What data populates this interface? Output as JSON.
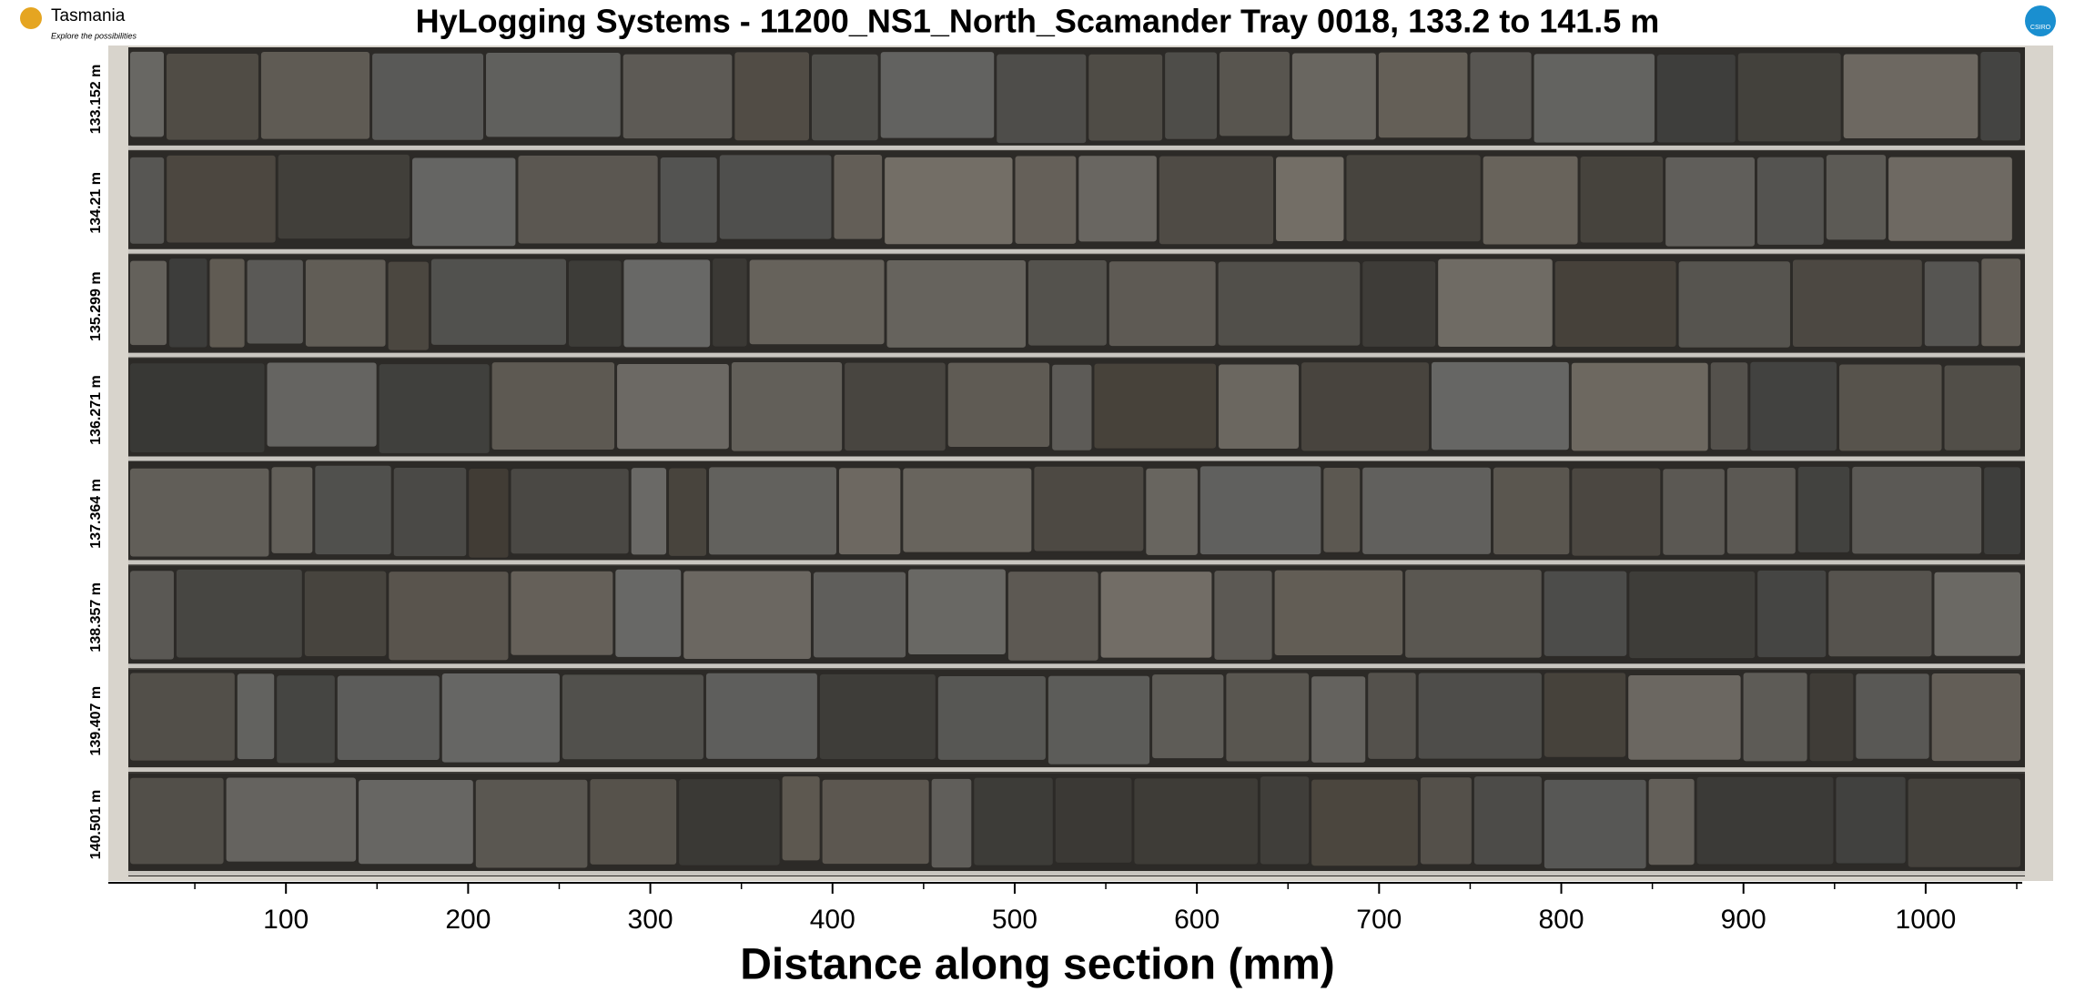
{
  "header": {
    "title": "HyLogging Systems  -  11200_NS1_North_Scamander  Tray 0018,  133.2 to 141.5 m"
  },
  "logo_left": {
    "name": "Tasmania",
    "tagline": "Explore the possibilities"
  },
  "logo_right": {
    "name": "CSIRO"
  },
  "rows": [
    "133.152 m",
    "134.21 m",
    "135.299 m",
    "136.271 m",
    "137.364 m",
    "138.357 m",
    "139.407 m",
    "140.501 m"
  ],
  "axis": {
    "xlabel": "Distance along section (mm)",
    "xlim": [
      0,
      1050
    ],
    "xticks": [
      100,
      200,
      300,
      400,
      500,
      600,
      700,
      800,
      900,
      1000
    ],
    "minor_xticks": [
      50,
      150,
      250,
      350,
      450,
      550,
      650,
      750,
      850,
      950,
      1050
    ]
  }
}
